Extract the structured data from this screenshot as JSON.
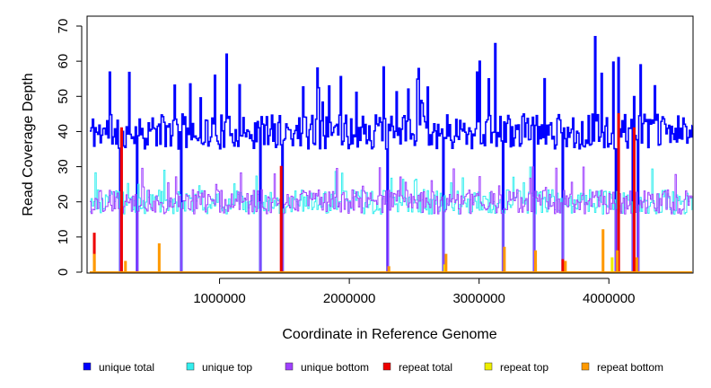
{
  "chart_data": {
    "type": "line",
    "title": "",
    "xlabel": "Coordinate in Reference Genome",
    "ylabel": "Read Coverage Depth",
    "xlim": [
      0,
      4641652
    ],
    "ylim": [
      0,
      70
    ],
    "x_ticks": [
      1000000,
      2000000,
      3000000,
      4000000
    ],
    "x_tick_labels": [
      "1000000",
      "2000000",
      "3000000",
      "4000000"
    ],
    "y_ticks": [
      0,
      10,
      20,
      30,
      40,
      50,
      60,
      70
    ],
    "y_tick_labels": [
      "0",
      "10",
      "20",
      "30",
      "40",
      "50",
      "60",
      "70"
    ],
    "legend_position": "bottom",
    "bin_size": 10000,
    "series": [
      {
        "name": "unique total",
        "color": "#0000ff",
        "baseline": 40,
        "noise": 5,
        "spike_prob": 0.07,
        "spike_range": [
          48,
          60
        ],
        "peaks": [
          [
            960000,
            56
          ],
          [
            1050000,
            62
          ],
          [
            3000000,
            60
          ],
          [
            3120000,
            65
          ],
          [
            3890000,
            67
          ],
          [
            4070000,
            61
          ],
          [
            4350000,
            53
          ]
        ]
      },
      {
        "name": "unique top",
        "color": "#33eeee",
        "baseline": 20,
        "noise": 3.5,
        "spike_prob": 0.04,
        "spike_range": [
          24,
          30
        ],
        "peaks": []
      },
      {
        "name": "unique bottom",
        "color": "#a040ff",
        "baseline": 20,
        "noise": 3.5,
        "spike_prob": 0.04,
        "spike_range": [
          24,
          30
        ],
        "peaks": []
      },
      {
        "name": "repeat total",
        "color": "#ee0000",
        "events": [
          [
            30000,
            11
          ],
          [
            240000,
            41
          ],
          [
            1470000,
            30
          ],
          [
            3640000,
            3.5
          ],
          [
            4070000,
            45
          ],
          [
            4190000,
            41
          ]
        ]
      },
      {
        "name": "repeat top",
        "color": "#eeee00",
        "events": [
          [
            30000,
            3
          ],
          [
            2730000,
            2
          ],
          [
            3430000,
            2
          ],
          [
            4020000,
            4
          ]
        ]
      },
      {
        "name": "repeat bottom",
        "color": "#ff9900",
        "events": [
          [
            30000,
            5
          ],
          [
            270000,
            3
          ],
          [
            530000,
            8
          ],
          [
            2300000,
            1.5
          ],
          [
            2740000,
            5
          ],
          [
            3190000,
            7
          ],
          [
            3430000,
            6
          ],
          [
            3660000,
            3
          ],
          [
            3950000,
            12
          ],
          [
            4060000,
            6
          ],
          [
            4210000,
            4
          ]
        ]
      }
    ],
    "dropouts": [
      230000,
      360000,
      700000,
      1310000,
      1480000,
      2290000,
      2720000,
      3180000,
      3420000,
      3640000,
      4050000,
      4180000,
      4220000
    ]
  }
}
